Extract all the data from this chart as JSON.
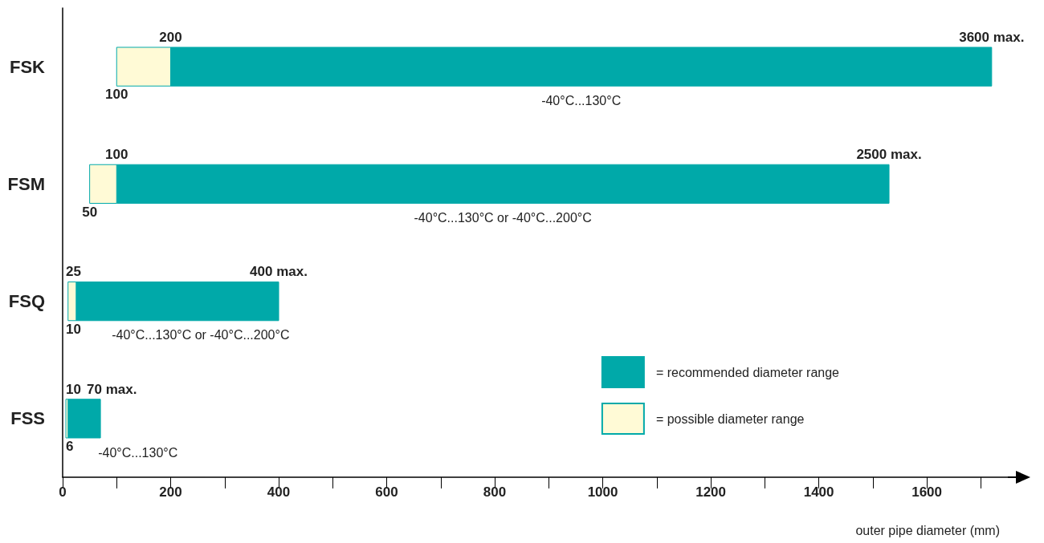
{
  "chart_data": {
    "type": "bar",
    "orientation": "horizontal",
    "categories": [
      "FSK",
      "FSM",
      "FSQ",
      "FSS"
    ],
    "series": [
      {
        "name": "= recommended diameter range",
        "color": "#00a9a9",
        "base": [
          200,
          100,
          25,
          10
        ],
        "values": [
          1520,
          1430,
          375,
          60
        ]
      },
      {
        "name": "= possible diameter range",
        "color": "#fffad6",
        "base": [
          100,
          50,
          10,
          6
        ],
        "values": [
          100,
          50,
          15,
          4
        ]
      }
    ],
    "xlim": [
      0,
      1750
    ],
    "xticks": [
      0,
      {
        "value": 100,
        "label": null
      },
      200,
      {
        "value": 300,
        "label": null
      },
      400,
      {
        "value": 500,
        "label": null
      },
      600,
      {
        "value": 700,
        "label": null
      },
      800,
      {
        "value": 900,
        "label": null
      },
      1000,
      {
        "value": 1100,
        "label": null
      },
      1200,
      {
        "value": 1300,
        "label": null
      },
      1400,
      {
        "value": 1500,
        "label": null
      },
      1600,
      {
        "value": 1700,
        "label": null
      }
    ],
    "xlabel": "outer pipe diameter (mm)",
    "grid": false,
    "legend": "bottom right",
    "annotations": [
      {
        "text": "200",
        "x": 200,
        "y": "FSK"
      },
      {
        "text": "100",
        "x": 100,
        "y": "FSK"
      },
      {
        "text": "3600 max.",
        "x": 1720,
        "y": "FSK"
      },
      "-40°C...130°C",
      {
        "text": "100",
        "x": 100,
        "y": "FSM"
      },
      {
        "text": "50",
        "x": 50,
        "y": "FSM"
      },
      {
        "text": "2500 max.",
        "x": 1530,
        "y": "FSM"
      },
      "-40°C...130°C or -40°C...200°C",
      {
        "text": "25",
        "x": 25,
        "y": "FSQ"
      },
      {
        "text": "10",
        "x": 10,
        "y": "FSQ"
      },
      {
        "text": "400 max.",
        "x": 400,
        "y": "FSQ"
      },
      "-40°C...130°C or -40°C...200°C",
      {
        "text": "10",
        "x": 10,
        "y": "FSS"
      },
      {
        "text": "6",
        "x": 6,
        "y": "FSS"
      },
      {
        "text": "70 max.",
        "x": 70,
        "y": "FSS"
      },
      "-40°C...130°C"
    ]
  }
}
